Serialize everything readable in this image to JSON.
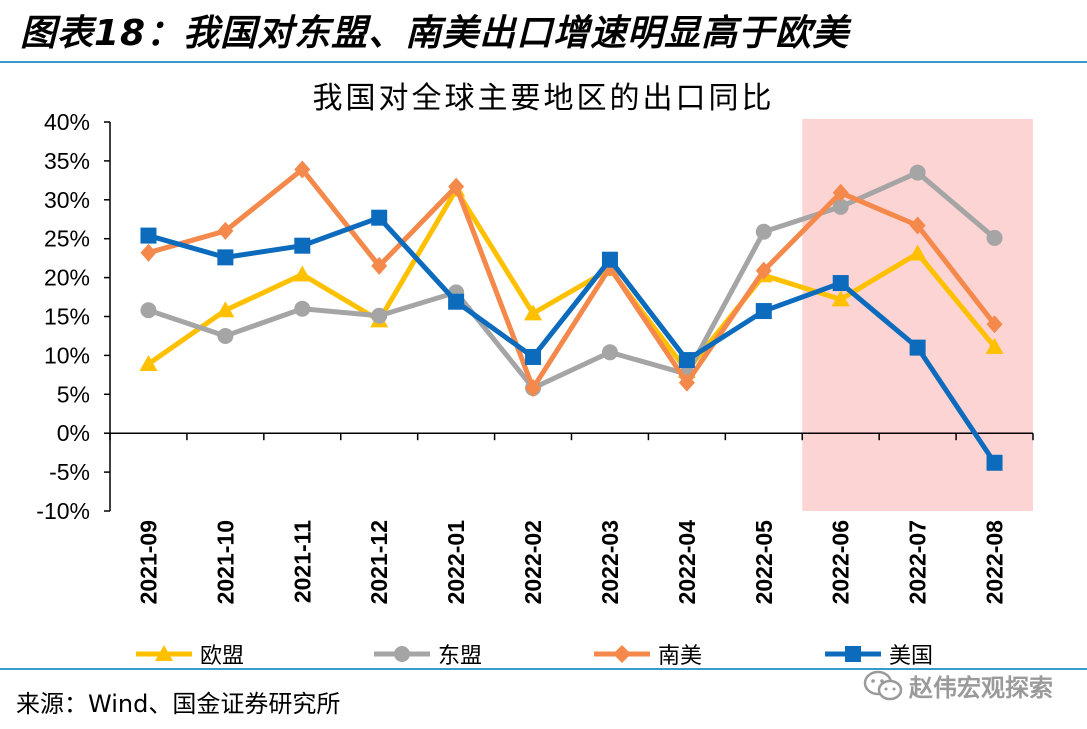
{
  "figure_title": "图表18：我国对东盟、南美出口增速明显高于欧美",
  "source": "来源：Wind、国金证券研究所",
  "watermark": "赵伟宏观探索",
  "colors": {
    "eu": "#ffc000",
    "asean": "#a5a5a5",
    "south_america": "#f4894b",
    "usa": "#0c6bbd",
    "highlight": "#fdd4d4",
    "rule": "#3a9bc9"
  },
  "chart_data": {
    "type": "line",
    "title": "我国对全球主要地区的出口同比",
    "xlabel": "",
    "ylabel": "",
    "categories": [
      "2021-09",
      "2021-10",
      "2021-11",
      "2021-12",
      "2022-01",
      "2022-02",
      "2022-03",
      "2022-04",
      "2022-05",
      "2022-06",
      "2022-07",
      "2022-08"
    ],
    "ylim": [
      -10,
      40
    ],
    "yticks": [
      "-10%",
      "-5%",
      "0%",
      "5%",
      "10%",
      "15%",
      "20%",
      "25%",
      "30%",
      "35%",
      "40%"
    ],
    "highlight_range": [
      "2022-06",
      "2022-08"
    ],
    "grid": false,
    "legend_position": "bottom",
    "series": [
      {
        "name": "欧盟",
        "color_key": "eu",
        "marker": "triangle",
        "values": [
          8.9,
          15.8,
          20.4,
          14.5,
          31.3,
          15.4,
          21.1,
          8.0,
          20.3,
          17.2,
          23.1,
          11.1
        ]
      },
      {
        "name": "东盟",
        "color_key": "asean",
        "marker": "circle",
        "values": [
          15.8,
          12.5,
          16.0,
          15.1,
          18.1,
          5.8,
          10.4,
          7.6,
          25.9,
          29.1,
          33.5,
          25.1
        ]
      },
      {
        "name": "南美",
        "color_key": "south_america",
        "marker": "diamond",
        "values": [
          23.2,
          26.0,
          33.9,
          21.5,
          31.7,
          5.8,
          21.3,
          6.5,
          20.9,
          30.9,
          26.7,
          14.0
        ]
      },
      {
        "name": "美国",
        "color_key": "usa",
        "marker": "square",
        "values": [
          25.4,
          22.6,
          24.1,
          27.7,
          16.9,
          9.8,
          22.3,
          9.4,
          15.7,
          19.3,
          11.0,
          -3.8
        ]
      }
    ]
  }
}
